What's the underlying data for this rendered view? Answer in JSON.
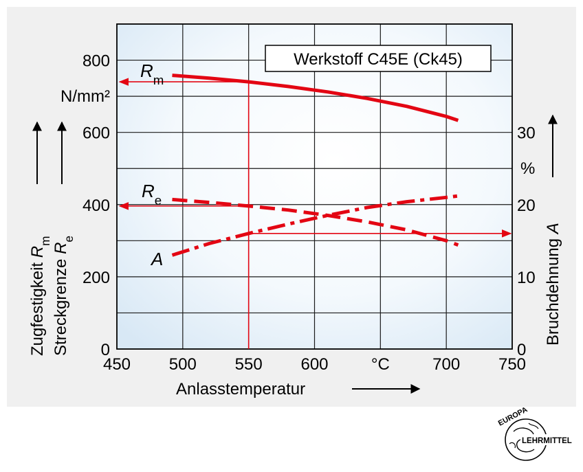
{
  "chart_data": {
    "type": "line",
    "title": "Werkstoff  C45E (Ck45)",
    "xlabel": "Anlasstemperatur",
    "x_unit": "°C",
    "xlim": [
      450,
      750
    ],
    "x_ticks": [
      "450",
      "500",
      "550",
      "600",
      "°C",
      "700",
      "750"
    ],
    "x_tick_values": [
      450,
      500,
      550,
      600,
      650,
      700,
      750
    ],
    "ylabel_lines": [
      {
        "text": "Zugfestigkeit ",
        "sym": "R",
        "sub": "m"
      },
      {
        "text": "Streckgrenze ",
        "sym": "R",
        "sub": "e"
      }
    ],
    "y_unit": "N/mm²",
    "ylim": [
      0,
      900
    ],
    "y_ticks": [
      0,
      200,
      400,
      600,
      800
    ],
    "y2label": {
      "text": "Bruchdehnung ",
      "sym": "A"
    },
    "y2_unit": "%",
    "y2lim": [
      0,
      45
    ],
    "y2_ticks": [
      0,
      10,
      20,
      30
    ],
    "grid": true,
    "series": [
      {
        "name": "Rm",
        "label_sym": "R",
        "label_sub": "m",
        "axis": "left",
        "style": "solid",
        "x": [
          492,
          520,
          550,
          580,
          610,
          640,
          670,
          700,
          709
        ],
        "y": [
          758,
          750,
          740,
          727,
          712,
          694,
          672,
          644,
          633
        ]
      },
      {
        "name": "Re",
        "label_sym": "R",
        "label_sub": "e",
        "axis": "left",
        "style": "dashed",
        "x": [
          492,
          520,
          550,
          580,
          610,
          640,
          670,
          700,
          709
        ],
        "y": [
          414,
          406,
          396,
          385,
          370,
          352,
          330,
          300,
          288
        ]
      },
      {
        "name": "A",
        "label_sym": "A",
        "label_sub": "",
        "axis": "right",
        "style": "dashdot",
        "x": [
          492,
          520,
          550,
          580,
          610,
          640,
          670,
          700,
          709
        ],
        "y": [
          13.0,
          14.6,
          16.0,
          17.3,
          18.5,
          19.6,
          20.4,
          21.0,
          21.2
        ]
      }
    ],
    "colors": {
      "curve": "#e30613",
      "grid": "#1a1a1a",
      "plot_bg_edge": "#d8e8f5",
      "plot_bg_center": "#ffffff",
      "panel_bg": "#f0f0f0"
    }
  },
  "logo": {
    "top_text": "EUROPA",
    "bottom_text": "LEHRMITTEL"
  }
}
